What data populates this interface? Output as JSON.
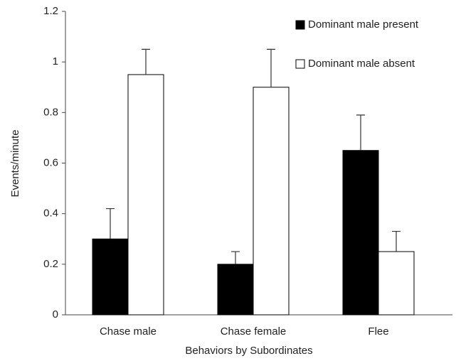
{
  "chart_data": {
    "type": "bar",
    "y_label": "Events/minute",
    "x_label": "Behaviors by Subordinates",
    "categories": [
      "Chase male",
      "Chase female",
      "Flee"
    ],
    "series": [
      {
        "name": "Dominant male present",
        "color": "#000000",
        "values": [
          0.3,
          0.2,
          0.65
        ],
        "errors": [
          0.12,
          0.05,
          0.14
        ]
      },
      {
        "name": "Dominant male absent",
        "color": "#ffffff",
        "values": [
          0.95,
          0.9,
          0.25
        ],
        "errors": [
          0.1,
          0.15,
          0.08
        ]
      }
    ],
    "ylim": [
      0,
      1.2
    ],
    "yticks": [
      0,
      0.2,
      0.4,
      0.6,
      0.8,
      1,
      1.2
    ],
    "grid": false,
    "legend": "upper right"
  }
}
